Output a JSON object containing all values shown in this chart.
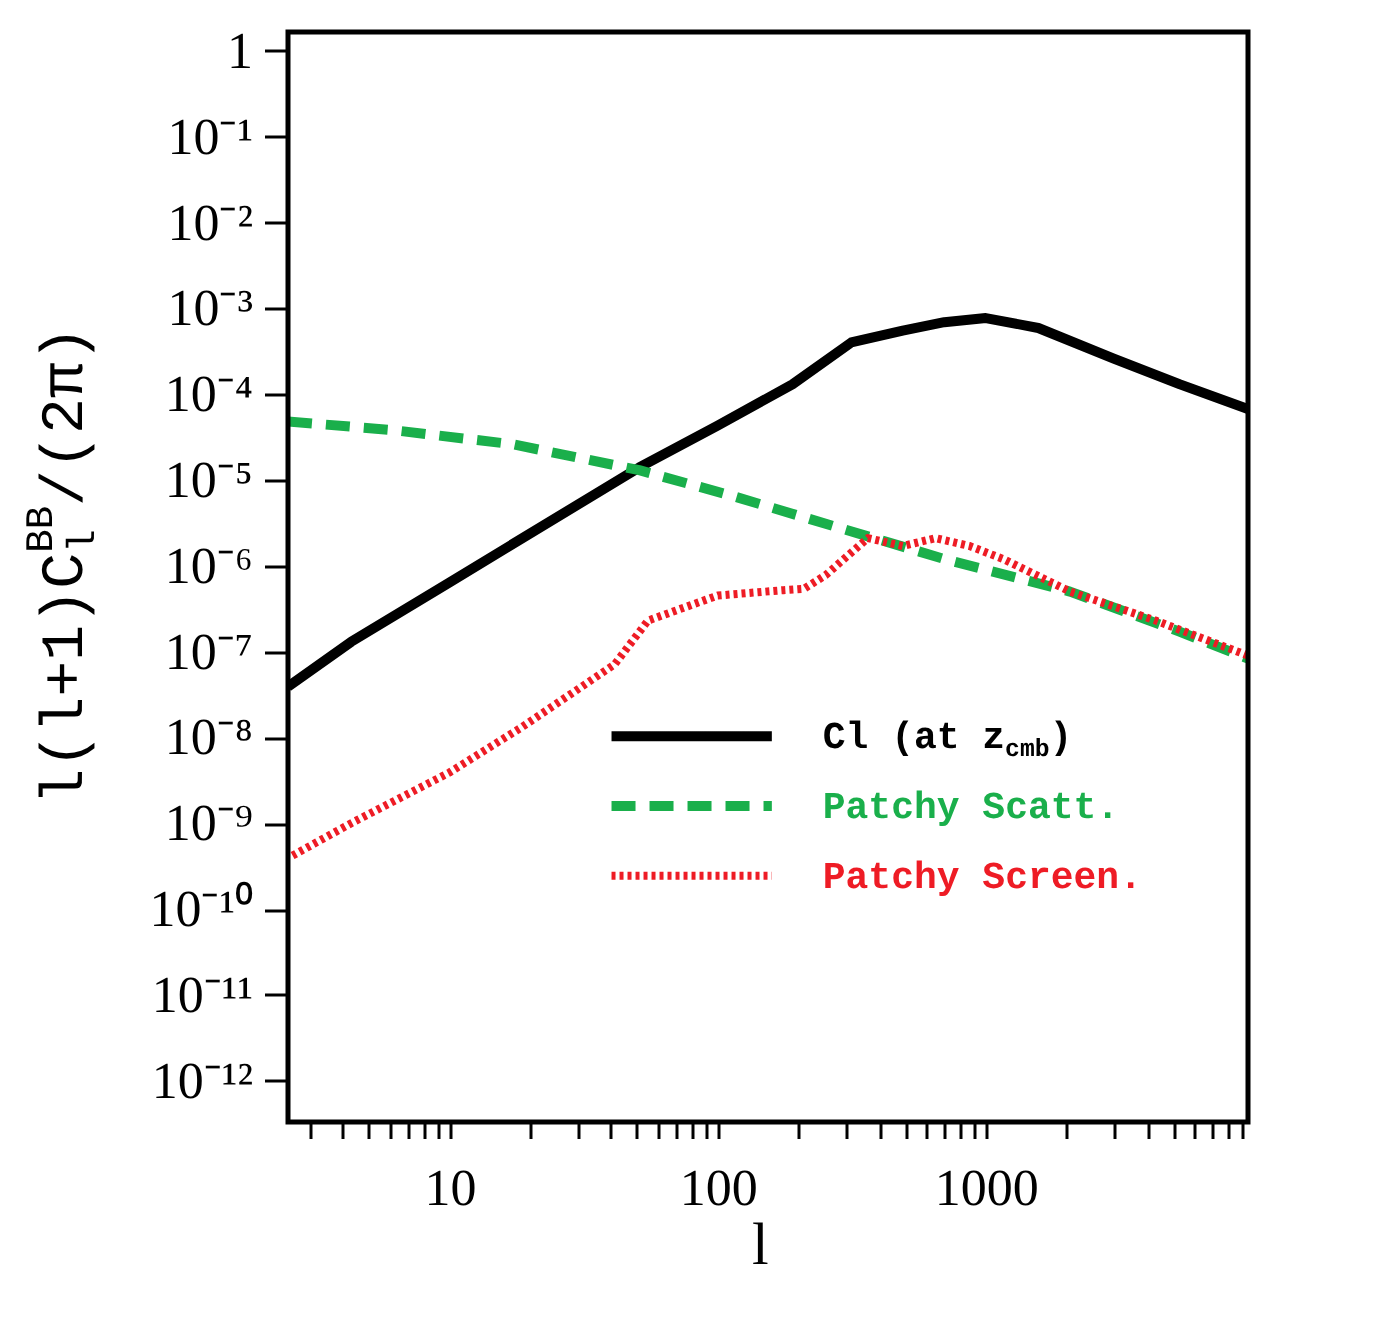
{
  "chart_data": {
    "type": "line",
    "xlabel": "l",
    "ylabel": "l(l+1)C$_{l}$$^{BB}$/(2π)",
    "log": "xy",
    "grid": false,
    "legend": "right",
    "xlim": [
      2.5,
      9500
    ],
    "ylim": [
      3.3e-13,
      1.66
    ],
    "xticks": [
      {
        "value": 3,
        "label": null
      },
      {
        "value": 4,
        "label": null
      },
      {
        "value": 5,
        "label": null
      },
      {
        "value": 6,
        "label": null
      },
      {
        "value": 7,
        "label": null
      },
      {
        "value": 8,
        "label": null
      },
      {
        "value": 9,
        "label": null
      },
      10,
      {
        "value": 20,
        "label": null
      },
      {
        "value": 30,
        "label": null
      },
      {
        "value": 40,
        "label": null
      },
      {
        "value": 50,
        "label": null
      },
      {
        "value": 60,
        "label": null
      },
      {
        "value": 70,
        "label": null
      },
      {
        "value": 80,
        "label": null
      },
      {
        "value": 90,
        "label": null
      },
      100,
      {
        "value": 200,
        "label": null
      },
      {
        "value": 300,
        "label": null
      },
      {
        "value": 400,
        "label": null
      },
      {
        "value": 500,
        "label": null
      },
      {
        "value": 600,
        "label": null
      },
      {
        "value": 700,
        "label": null
      },
      {
        "value": 800,
        "label": null
      },
      {
        "value": 900,
        "label": null
      },
      1000,
      {
        "value": 2000,
        "label": null
      },
      {
        "value": 3000,
        "label": null
      },
      {
        "value": 4000,
        "label": null
      },
      {
        "value": 5000,
        "label": null
      },
      {
        "value": 6000,
        "label": null
      },
      {
        "value": 7000,
        "label": null
      },
      {
        "value": 8000,
        "label": null
      },
      {
        "value": 9000,
        "label": null
      }
    ],
    "yticks": [
      1,
      {
        "value": 0.1,
        "label": "10⁻¹"
      },
      {
        "value": 0.01,
        "label": "10⁻²"
      },
      {
        "value": 0.001,
        "label": "10⁻³"
      },
      {
        "value": 0.0001,
        "label": "10⁻⁴"
      },
      {
        "value": 1e-05,
        "label": "10⁻⁵"
      },
      {
        "value": 1e-06,
        "label": "10⁻⁶"
      },
      {
        "value": 1e-07,
        "label": "10⁻⁷"
      },
      {
        "value": 1e-08,
        "label": "10⁻⁸"
      },
      {
        "value": 1e-09,
        "label": "10⁻⁹"
      },
      {
        "value": 1e-10,
        "label": "10⁻¹⁰"
      },
      {
        "value": 1e-11,
        "label": "10⁻¹¹"
      },
      {
        "value": 1e-12,
        "label": "10⁻¹²"
      }
    ],
    "series": [
      {
        "name": "Cl (at z$_{cmb}$)",
        "color": "#000000",
        "line_style": "solid",
        "x": [
          2.5,
          4.3,
          10,
          51,
          100,
          190,
          315,
          490,
          700,
          1000,
          1570,
          3000,
          5300,
          9500
        ],
        "values": [
          3.9e-08,
          1.3e-07,
          6.4e-07,
          1.4e-05,
          4.3e-05,
          0.00013,
          0.0004,
          0.00055,
          0.00069,
          0.00077,
          0.00059,
          0.00026,
          0.00013,
          6.7e-05
        ]
      },
      {
        "name": "Patchy Scatt.",
        "color": "#1aaf4b",
        "line_style": "dashed",
        "x": [
          2.5,
          6.2,
          17.3,
          51,
          114,
          292,
          700,
          2060,
          5300,
          9500
        ],
        "values": [
          4.8e-05,
          3.8e-05,
          2.6e-05,
          1.3e-05,
          6.5e-06,
          2.7e-06,
          1.2e-06,
          5e-07,
          1.7e-07,
          8.3e-08
        ]
      },
      {
        "name": "Patchy Screen.",
        "color": "#ee1c25",
        "line_style": "dotted",
        "x": [
          2.6,
          4.3,
          10,
          18.5,
          41.3,
          55,
          100,
          176,
          210,
          253,
          363,
          490,
          650,
          870,
          1160,
          2060,
          4300,
          9500
        ],
        "values": [
          4.2e-10,
          1e-09,
          3.9e-09,
          1.3e-08,
          7.1e-08,
          2.3e-07,
          4.5e-07,
          5.2e-07,
          5.4e-07,
          7.8e-07,
          2.1e-06,
          1.7e-06,
          2.1e-06,
          1.7e-06,
          1.2e-06,
          5e-07,
          2.3e-07,
          9e-08
        ]
      }
    ]
  }
}
